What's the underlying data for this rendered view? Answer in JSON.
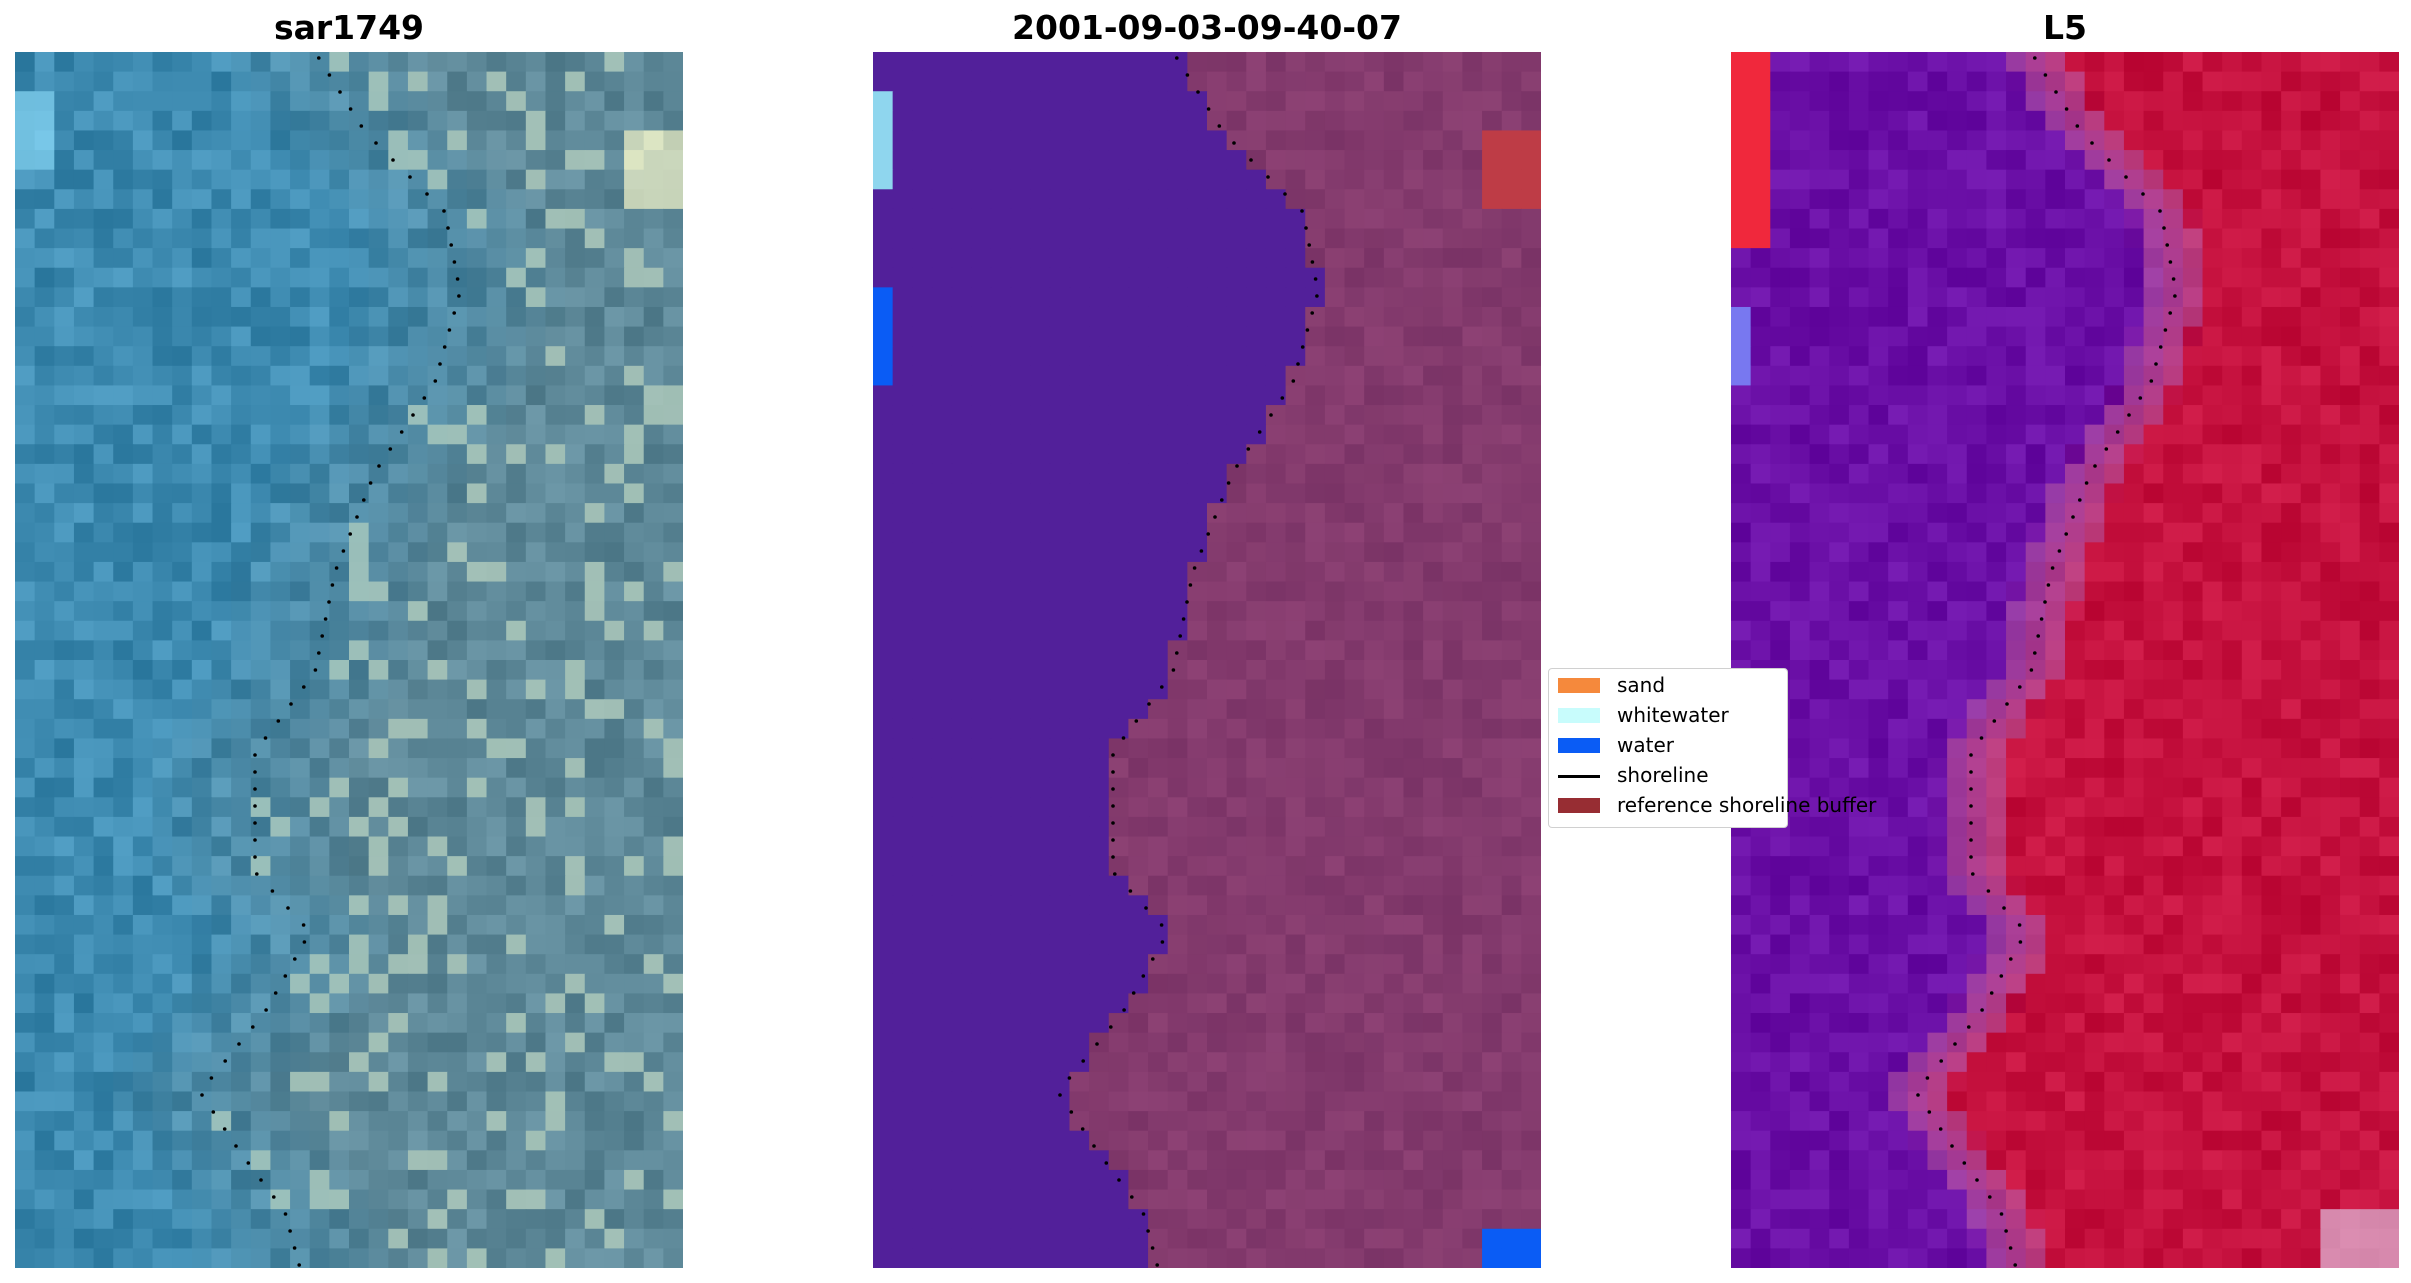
{
  "panels": [
    {
      "title": "sar1749",
      "palette": "rgb"
    },
    {
      "title": "2001-09-03-09-40-07",
      "palette": "classified"
    },
    {
      "title": "L5",
      "palette": "diverging"
    }
  ],
  "legend": {
    "items": [
      {
        "label": "sand",
        "color": "#f5893c",
        "kind": "patch"
      },
      {
        "label": "whitewater",
        "color": "#c8fcfc",
        "kind": "patch"
      },
      {
        "label": "water",
        "color": "#0a5cf5",
        "kind": "patch"
      },
      {
        "label": "shoreline",
        "color": "#000000",
        "kind": "line"
      },
      {
        "label": "reference shoreline buffer",
        "color": "#972d33",
        "kind": "patch"
      }
    ]
  },
  "colors": {
    "classified_water": "#52209a",
    "classified_land": "#7a3366",
    "sar_water": "#3d8ab0",
    "sar_land": "#5f8a9a",
    "index_water": "#6a0fa6",
    "index_land": "#c5113e",
    "shoreline_dots": "#000000"
  }
}
